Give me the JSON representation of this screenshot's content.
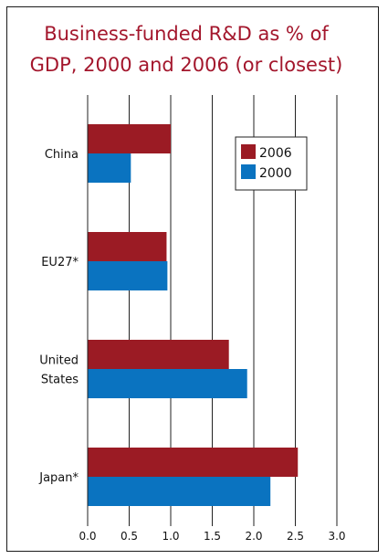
{
  "chart_data": {
    "type": "bar",
    "orientation": "horizontal",
    "title_lines": [
      "Business-funded R&D as % of",
      "GDP, 2000 and 2006 (or closest)"
    ],
    "categories": [
      {
        "lines": [
          "China"
        ]
      },
      {
        "lines": [
          "EU27*"
        ]
      },
      {
        "lines": [
          "United",
          "States"
        ]
      },
      {
        "lines": [
          "Japan*"
        ]
      }
    ],
    "series": [
      {
        "name": "2006",
        "color": "#9b1b24",
        "values": [
          1.0,
          0.95,
          1.7,
          2.53
        ]
      },
      {
        "name": "2000",
        "color": "#0a73c0",
        "values": [
          0.52,
          0.96,
          1.92,
          2.2
        ]
      }
    ],
    "xlim": [
      0,
      3
    ],
    "x_ticks": [
      "0.0",
      "0.5",
      "1.0",
      "1.5",
      "2.0",
      "2.5",
      "3.0"
    ],
    "grid": "vertical",
    "legend": {
      "position": "top-right",
      "order": [
        "2006",
        "2000"
      ]
    }
  }
}
